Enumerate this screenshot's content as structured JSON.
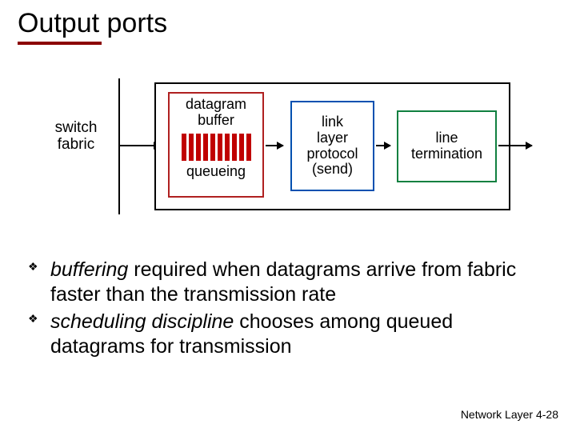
{
  "title": "Output ports",
  "title_underline_color": "#8b0000",
  "diagram": {
    "switch_label": "switch\nfabric",
    "box1": {
      "top_label": "datagram\nbuffer",
      "bottom_label": "queueing",
      "border_color": "#b02020",
      "bar_color": "#c00000",
      "bar_count": 10
    },
    "box2": {
      "label": "link\nlayer\nprotocol\n(send)",
      "border_color": "#0050b0"
    },
    "box3": {
      "label": "line\ntermination",
      "border_color": "#108040"
    },
    "outer_border_color": "#000000",
    "background": "#ffffff"
  },
  "bullets": [
    {
      "italic": "buffering",
      "rest": " required when datagrams arrive from fabric faster than the transmission rate"
    },
    {
      "italic": "scheduling discipline",
      "rest": " chooses among queued datagrams for transmission"
    }
  ],
  "footer": {
    "label": "Network Layer",
    "page": "4-28"
  }
}
